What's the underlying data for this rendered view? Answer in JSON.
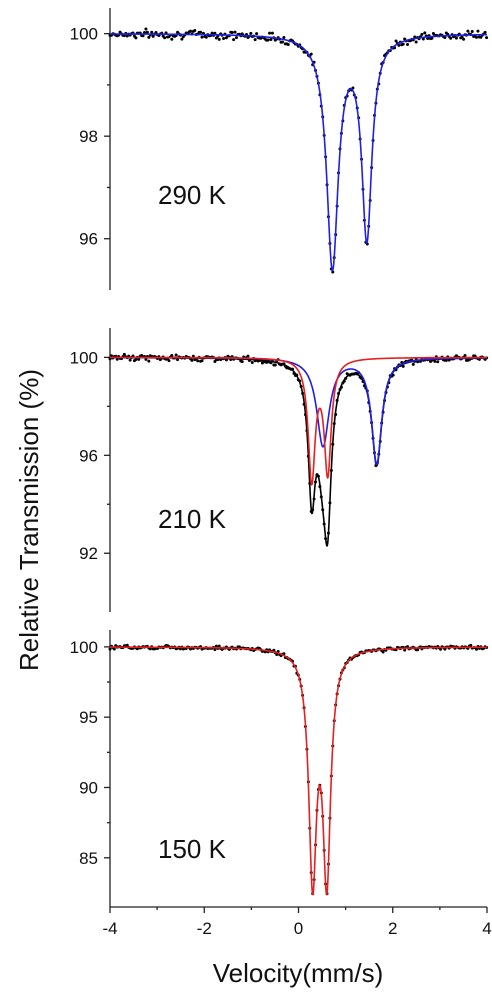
{
  "chart_data": [
    {
      "type": "line",
      "temperature_label": "290 K",
      "ylim": [
        95,
        100.5
      ],
      "yticks": [
        100,
        98,
        96
      ],
      "xlim": [
        -4,
        4
      ],
      "series": [
        {
          "role": "data",
          "color": "#000000",
          "style": "points",
          "components": [
            {
              "center": 0.72,
              "depth": 4.5,
              "hwhm": 0.15
            },
            {
              "center": 1.45,
              "depth": 3.9,
              "hwhm": 0.13
            }
          ],
          "noise": 0.07
        },
        {
          "role": "fit",
          "color": "#1f1fe6",
          "style": "line",
          "components": [
            {
              "center": 0.72,
              "depth": 4.5,
              "hwhm": 0.15
            },
            {
              "center": 1.45,
              "depth": 3.9,
              "hwhm": 0.13
            }
          ]
        }
      ]
    },
    {
      "type": "line",
      "temperature_label": "210 K",
      "ylim": [
        89.5,
        101.5
      ],
      "yticks": [
        100,
        96,
        92
      ],
      "xlim": [
        -4,
        4
      ],
      "series": [
        {
          "role": "data",
          "color": "#000000",
          "style": "points",
          "components": [
            {
              "center": 0.52,
              "depth": 3.6,
              "hwhm": 0.16
            },
            {
              "center": 1.66,
              "depth": 4.3,
              "hwhm": 0.13
            },
            {
              "center": 0.28,
              "depth": 4.9,
              "hwhm": 0.09
            },
            {
              "center": 0.62,
              "depth": 4.6,
              "hwhm": 0.09
            }
          ],
          "noise": 0.1
        },
        {
          "role": "fit",
          "color": "#000000",
          "style": "line",
          "components": [
            {
              "center": 0.52,
              "depth": 3.6,
              "hwhm": 0.16
            },
            {
              "center": 1.66,
              "depth": 4.3,
              "hwhm": 0.13
            },
            {
              "center": 0.28,
              "depth": 4.9,
              "hwhm": 0.09
            },
            {
              "center": 0.62,
              "depth": 4.6,
              "hwhm": 0.09
            }
          ]
        },
        {
          "role": "fit",
          "color": "#1f1fe6",
          "style": "line",
          "components": [
            {
              "center": 0.52,
              "depth": 3.6,
              "hwhm": 0.16
            },
            {
              "center": 1.66,
              "depth": 4.3,
              "hwhm": 0.13
            }
          ]
        },
        {
          "role": "fit",
          "color": "#e61f1f",
          "style": "line",
          "components": [
            {
              "center": 0.28,
              "depth": 4.9,
              "hwhm": 0.09
            },
            {
              "center": 0.62,
              "depth": 4.6,
              "hwhm": 0.09
            }
          ]
        }
      ]
    },
    {
      "type": "line",
      "temperature_label": "150 K",
      "ylim": [
        81,
        101.5
      ],
      "yticks": [
        100,
        95,
        90,
        85
      ],
      "xlim": [
        -4,
        4
      ],
      "xticks": [
        -4,
        -2,
        0,
        2,
        4
      ],
      "series": [
        {
          "role": "data",
          "color": "#000000",
          "style": "points",
          "components": [
            {
              "center": 0.3,
              "depth": 16.0,
              "hwhm": 0.1
            },
            {
              "center": 0.6,
              "depth": 16.0,
              "hwhm": 0.1
            }
          ],
          "noise": 0.12
        },
        {
          "role": "fit",
          "color": "#e61f1f",
          "style": "line",
          "components": [
            {
              "center": 0.3,
              "depth": 16.0,
              "hwhm": 0.1
            },
            {
              "center": 0.6,
              "depth": 16.0,
              "hwhm": 0.1
            }
          ]
        }
      ]
    }
  ],
  "axes": {
    "ylabel": "Relative Transmission (%)",
    "xlabel": "Velocity(mm/s)"
  }
}
